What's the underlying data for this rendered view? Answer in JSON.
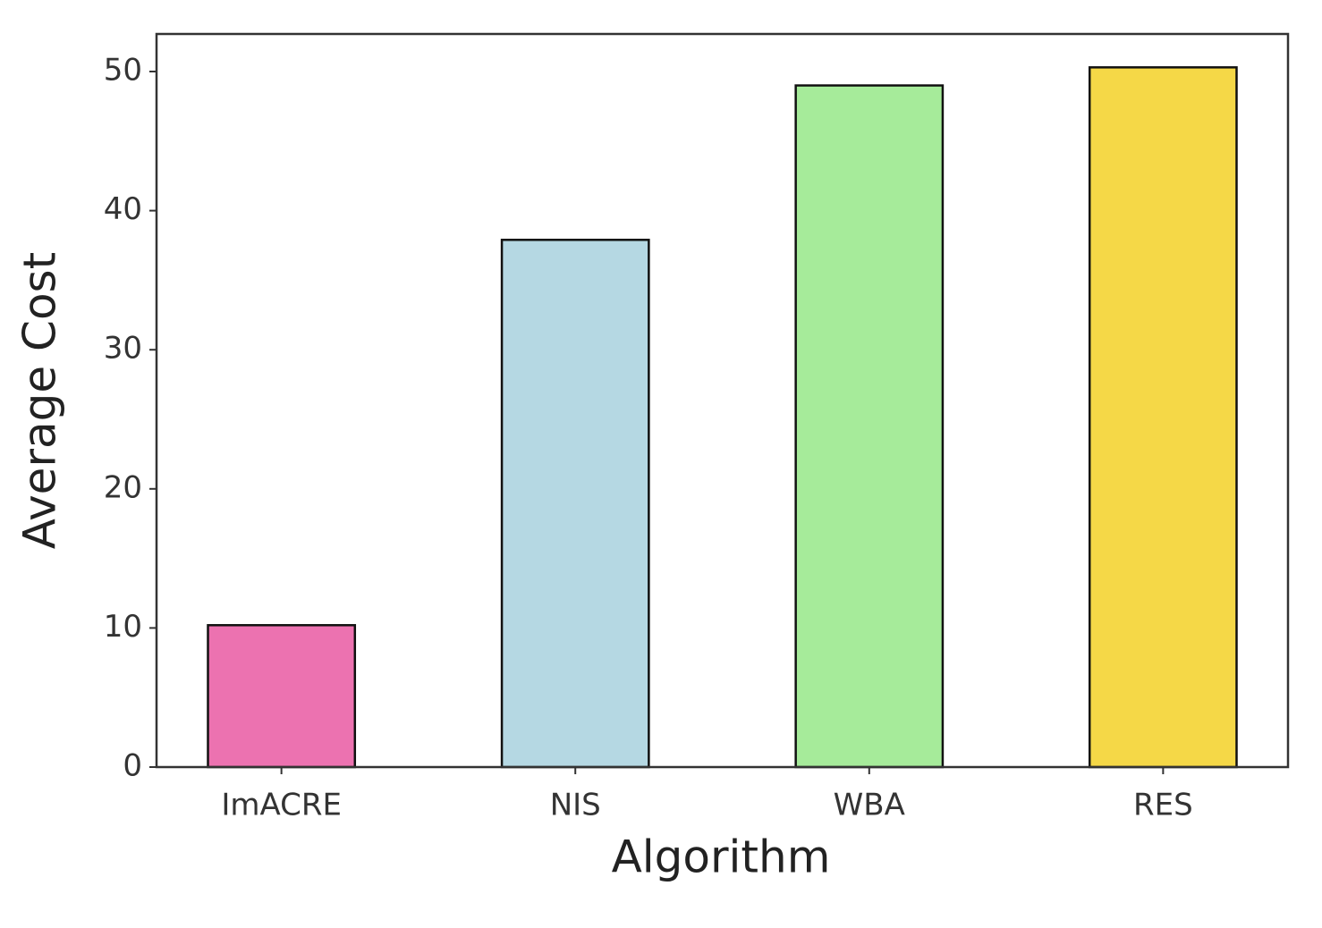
{
  "chart_data": {
    "type": "bar",
    "x_label": "Algorithm",
    "y_label": "Average Cost",
    "categories": [
      "ImACRE",
      "NIS",
      "WBA",
      "RES"
    ],
    "values": [
      10.2,
      37.9,
      49.0,
      50.3
    ],
    "colors": [
      "#ec72b0",
      "#b5d8e3",
      "#a6eb9a",
      "#f5d847"
    ],
    "ylim": [
      0,
      52.7
    ],
    "yticks": [
      0,
      10,
      20,
      30,
      40,
      50
    ],
    "grid": false
  }
}
